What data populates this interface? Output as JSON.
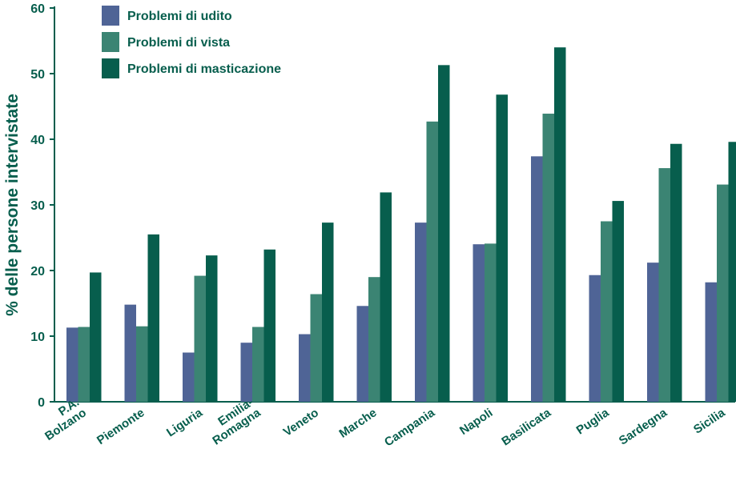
{
  "chart_data": {
    "type": "bar",
    "title": "",
    "xlabel": "",
    "ylabel": "% delle persone intervistate",
    "ylim": [
      0,
      60
    ],
    "yticks": [
      0,
      10,
      20,
      30,
      40,
      50,
      60
    ],
    "grid": false,
    "legend_position": "top-left",
    "categories": [
      [
        "P.A.",
        "Bolzano"
      ],
      [
        "Piemonte"
      ],
      [
        "Liguria"
      ],
      [
        "Emilia-",
        "Romagna"
      ],
      [
        "Veneto"
      ],
      [
        "Marche"
      ],
      [
        "Campania"
      ],
      [
        "Napoli"
      ],
      [
        "Basilicata"
      ],
      [
        "Puglia"
      ],
      [
        "Sardegna"
      ],
      [
        "Sicilia"
      ]
    ],
    "series": [
      {
        "name": "Problemi di udito",
        "color": "#4f6496",
        "values": [
          11.3,
          14.8,
          7.5,
          9.0,
          10.3,
          14.6,
          27.3,
          24.0,
          37.4,
          19.3,
          21.2,
          18.2
        ]
      },
      {
        "name": "Problemi di vista",
        "color": "#3b8473",
        "values": [
          11.4,
          11.5,
          19.2,
          11.4,
          16.4,
          19.0,
          42.7,
          24.1,
          43.9,
          27.5,
          35.6,
          33.1
        ]
      },
      {
        "name": "Problemi di masticazione",
        "color": "#075e4d",
        "values": [
          19.7,
          25.5,
          22.3,
          23.2,
          27.3,
          31.9,
          51.3,
          46.8,
          54.0,
          30.6,
          39.3,
          39.6
        ]
      }
    ],
    "colors": {
      "axis": "#075e4d",
      "text": "#075e4d"
    }
  }
}
